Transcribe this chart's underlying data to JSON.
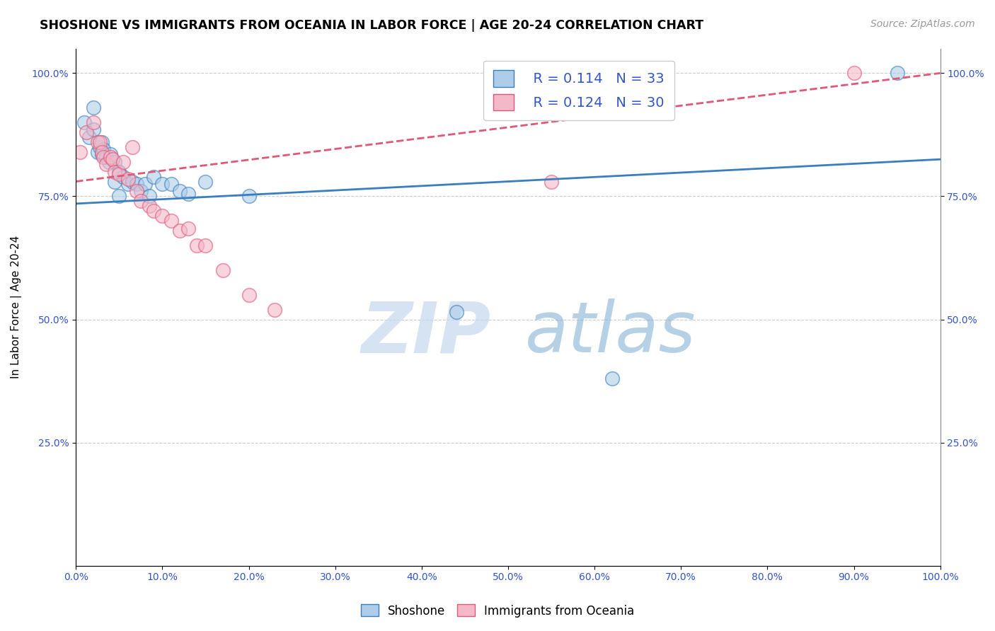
{
  "title": "SHOSHONE VS IMMIGRANTS FROM OCEANIA IN LABOR FORCE | AGE 20-24 CORRELATION CHART",
  "source": "Source: ZipAtlas.com",
  "ylabel": "In Labor Force | Age 20-24",
  "legend_label1": "Shoshone",
  "legend_label2": "Immigrants from Oceania",
  "R1": 0.114,
  "N1": 33,
  "R2": 0.124,
  "N2": 30,
  "blue_color": "#aecde8",
  "pink_color": "#f4b8c8",
  "line_blue": "#3a7ec0",
  "line_pink": "#e05878",
  "watermark_zip": "ZIP",
  "watermark_atlas": "atlas",
  "blue_x": [
    1.0,
    1.5,
    2.0,
    2.0,
    2.5,
    2.8,
    3.0,
    3.0,
    3.2,
    3.5,
    3.8,
    4.0,
    4.5,
    4.5,
    5.0,
    5.0,
    5.5,
    6.0,
    6.5,
    7.0,
    7.5,
    8.0,
    8.5,
    9.0,
    10.0,
    11.0,
    12.0,
    13.0,
    15.0,
    20.0,
    44.0,
    62.0,
    95.0
  ],
  "blue_y": [
    90.0,
    87.0,
    93.0,
    88.5,
    84.0,
    85.0,
    86.0,
    83.5,
    84.5,
    83.0,
    82.0,
    83.5,
    82.0,
    78.0,
    80.0,
    75.0,
    79.0,
    77.5,
    78.0,
    77.5,
    76.0,
    77.5,
    75.0,
    79.0,
    77.5,
    77.5,
    76.0,
    75.5,
    78.0,
    75.0,
    51.5,
    38.0,
    100.0
  ],
  "pink_x": [
    0.5,
    1.2,
    2.0,
    2.5,
    2.8,
    3.0,
    3.2,
    3.5,
    4.0,
    4.2,
    4.5,
    5.0,
    5.5,
    6.0,
    6.5,
    7.0,
    7.5,
    8.5,
    9.0,
    10.0,
    11.0,
    12.0,
    13.0,
    14.0,
    15.0,
    17.0,
    20.0,
    23.0,
    55.0,
    90.0
  ],
  "pink_y": [
    84.0,
    88.0,
    90.0,
    86.0,
    86.0,
    84.0,
    83.0,
    81.5,
    83.0,
    82.5,
    80.0,
    79.5,
    82.0,
    78.5,
    85.0,
    76.0,
    74.0,
    73.0,
    72.0,
    71.0,
    70.0,
    68.0,
    68.5,
    65.0,
    65.0,
    60.0,
    55.0,
    52.0,
    78.0,
    100.0
  ],
  "trend_blue_x0": 0,
  "trend_blue_y0": 73.5,
  "trend_blue_x1": 100,
  "trend_blue_y1": 82.5,
  "trend_pink_x0": 0,
  "trend_pink_y0": 78.0,
  "trend_pink_x1": 100,
  "trend_pink_y1": 100.0,
  "xlim": [
    0,
    100
  ],
  "ylim": [
    0,
    105
  ],
  "xticks": [
    0,
    10,
    20,
    30,
    40,
    50,
    60,
    70,
    80,
    90,
    100
  ],
  "yticks": [
    25,
    50,
    75,
    100
  ],
  "xticklabels": [
    "0.0%",
    "10.0%",
    "20.0%",
    "30.0%",
    "40.0%",
    "50.0%",
    "60.0%",
    "70.0%",
    "80.0%",
    "90.0%",
    "100.0%"
  ],
  "yticklabels": [
    "25.0%",
    "50.0%",
    "75.0%",
    "100.0%"
  ]
}
